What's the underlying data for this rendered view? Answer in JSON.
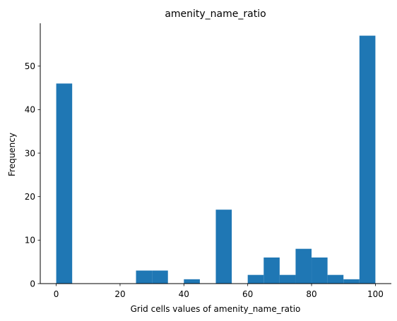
{
  "chart_data": {
    "type": "bar",
    "title": "amenity_name_ratio",
    "xlabel": "Grid cells values of amenity_name_ratio",
    "ylabel": "Frequency",
    "xlim": [
      -5.0,
      105.0
    ],
    "ylim": [
      0,
      59.85
    ],
    "xticks": [
      0,
      20,
      40,
      60,
      80,
      100
    ],
    "yticks": [
      0,
      10,
      20,
      30,
      40,
      50
    ],
    "bar_color": "#1f77b4",
    "bins": [
      {
        "x0": 0,
        "x1": 5,
        "value": 46
      },
      {
        "x0": 5,
        "x1": 10,
        "value": 0
      },
      {
        "x0": 10,
        "x1": 15,
        "value": 0
      },
      {
        "x0": 15,
        "x1": 20,
        "value": 0
      },
      {
        "x0": 20,
        "x1": 25,
        "value": 0
      },
      {
        "x0": 25,
        "x1": 30,
        "value": 3
      },
      {
        "x0": 30,
        "x1": 35,
        "value": 3
      },
      {
        "x0": 35,
        "x1": 40,
        "value": 0
      },
      {
        "x0": 40,
        "x1": 45,
        "value": 1
      },
      {
        "x0": 45,
        "x1": 50,
        "value": 0
      },
      {
        "x0": 50,
        "x1": 55,
        "value": 17
      },
      {
        "x0": 55,
        "x1": 60,
        "value": 0
      },
      {
        "x0": 60,
        "x1": 65,
        "value": 2
      },
      {
        "x0": 65,
        "x1": 70,
        "value": 6
      },
      {
        "x0": 70,
        "x1": 75,
        "value": 2
      },
      {
        "x0": 75,
        "x1": 80,
        "value": 8
      },
      {
        "x0": 80,
        "x1": 85,
        "value": 6
      },
      {
        "x0": 85,
        "x1": 90,
        "value": 2
      },
      {
        "x0": 90,
        "x1": 95,
        "value": 1
      },
      {
        "x0": 95,
        "x1": 100,
        "value": 57
      }
    ],
    "spines": {
      "top": false,
      "right": false,
      "left": true,
      "bottom": true
    },
    "grid": false
  }
}
